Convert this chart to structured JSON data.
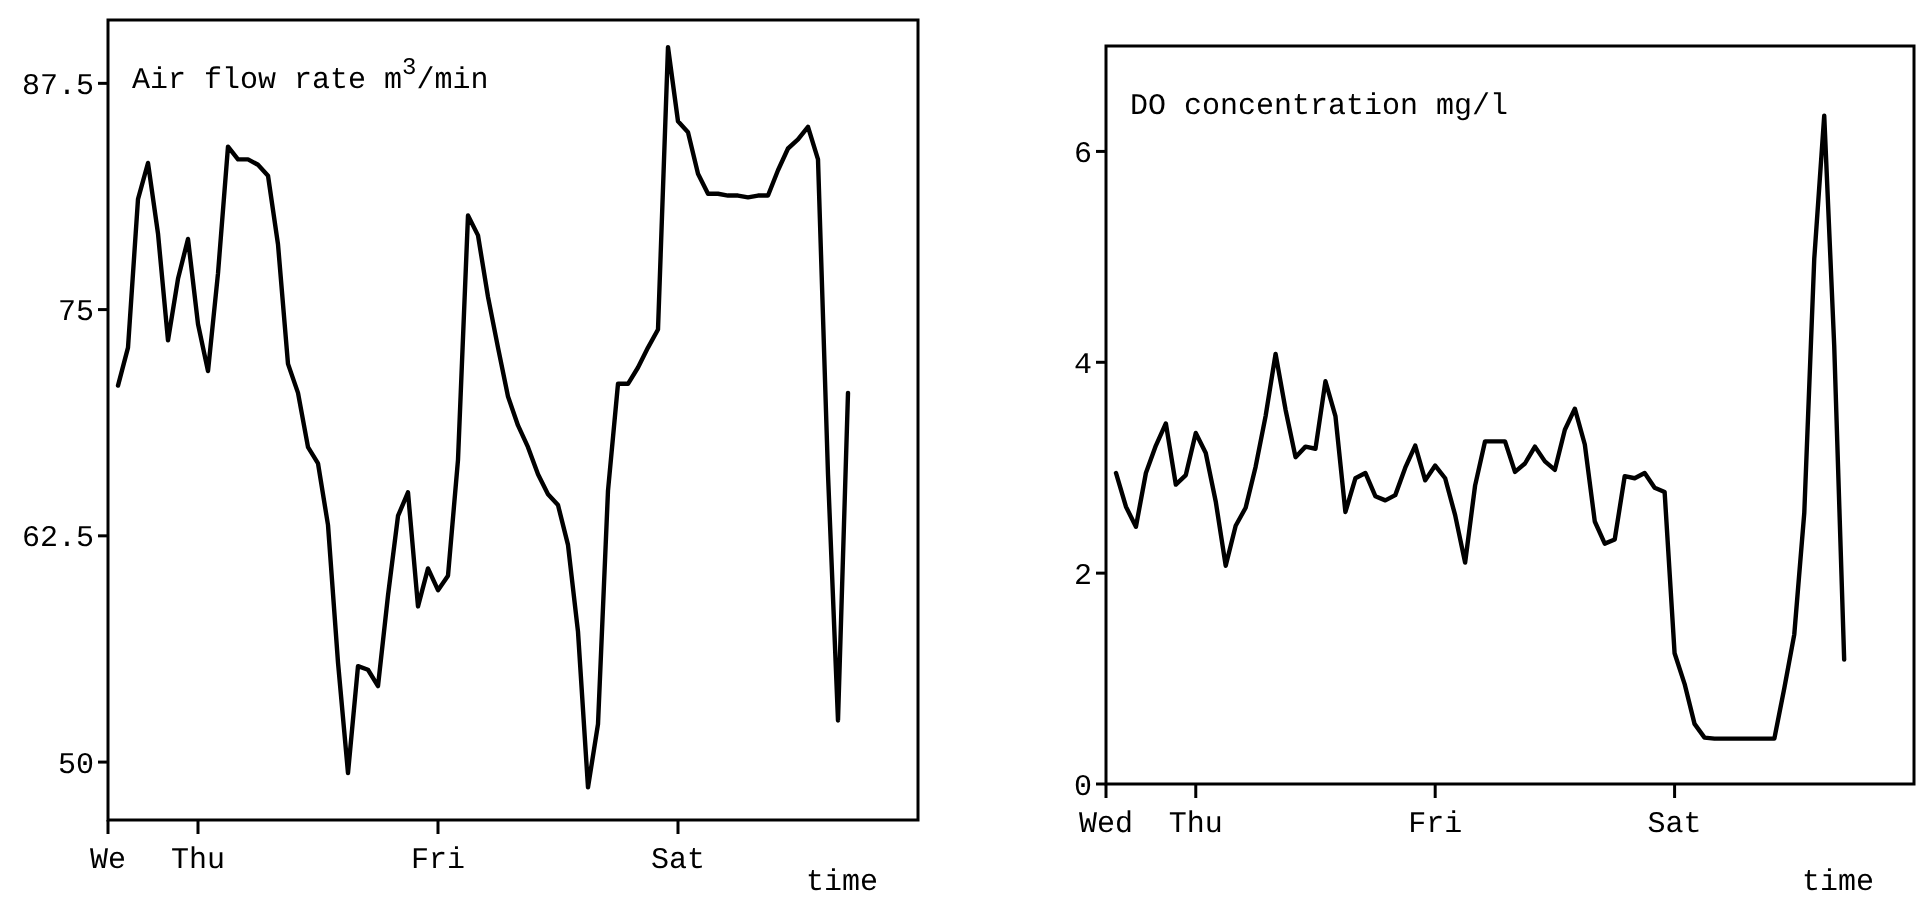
{
  "chart_data": [
    {
      "type": "line",
      "title": "Air flow rate m$^{3}$/min",
      "xlabel": "time",
      "color": "#000000",
      "ylim": [
        46.8,
        91.0
      ],
      "categories": [
        "We",
        null,
        null,
        null,
        null,
        null,
        null,
        null,
        null,
        "Thu",
        null,
        null,
        null,
        null,
        null,
        null,
        null,
        null,
        null,
        null,
        null,
        null,
        null,
        null,
        null,
        null,
        null,
        null,
        null,
        null,
        null,
        null,
        null,
        "Fri",
        null,
        null,
        null,
        null,
        null,
        null,
        null,
        null,
        null,
        null,
        null,
        null,
        null,
        null,
        null,
        null,
        null,
        null,
        null,
        null,
        null,
        null,
        null,
        "Sat",
        null,
        null,
        null,
        null,
        null,
        null,
        null,
        null,
        null,
        null,
        null,
        null,
        null,
        null,
        null,
        null,
        null,
        null,
        null,
        null,
        null,
        null,
        null,
        null
      ],
      "yticks": [
        50,
        62.5,
        75,
        87.5
      ],
      "values": [
        null,
        70.8,
        72.9,
        81.1,
        83.1,
        79.2,
        73.3,
        76.7,
        78.9,
        74.2,
        71.6,
        77.0,
        84.0,
        83.3,
        83.3,
        83.0,
        82.4,
        78.6,
        72.0,
        70.4,
        67.4,
        66.5,
        63.1,
        55.5,
        49.4,
        55.3,
        55.1,
        54.2,
        59.2,
        63.6,
        64.9,
        58.6,
        60.7,
        59.5,
        60.3,
        66.7,
        80.2,
        79.1,
        75.7,
        72.9,
        70.2,
        68.6,
        67.4,
        65.9,
        64.8,
        64.2,
        62.0,
        57.2,
        48.6,
        52.1,
        65.0,
        70.9,
        70.9,
        71.8,
        72.9,
        73.9,
        89.5,
        85.4,
        84.8,
        82.5,
        81.4,
        81.4,
        81.3,
        81.3,
        81.2,
        81.3,
        81.3,
        82.7,
        83.9,
        84.4,
        85.1,
        83.3,
        65.9,
        52.3,
        70.4,
        null,
        null,
        null,
        null,
        null,
        null,
        null
      ]
    },
    {
      "type": "line",
      "title": "DO concentration mg/l",
      "xlabel": "time",
      "color": "#000000",
      "ylim": [
        0,
        7.0
      ],
      "categories": [
        "Wed",
        null,
        null,
        null,
        null,
        null,
        null,
        null,
        null,
        "Thu",
        null,
        null,
        null,
        null,
        null,
        null,
        null,
        null,
        null,
        null,
        null,
        null,
        null,
        null,
        null,
        null,
        null,
        null,
        null,
        null,
        null,
        null,
        null,
        "Fri",
        null,
        null,
        null,
        null,
        null,
        null,
        null,
        null,
        null,
        null,
        null,
        null,
        null,
        null,
        null,
        null,
        null,
        null,
        null,
        null,
        null,
        null,
        null,
        "Sat",
        null,
        null,
        null,
        null,
        null,
        null,
        null,
        null,
        null,
        null,
        null,
        null,
        null,
        null,
        null,
        null,
        null,
        null,
        null,
        null,
        null,
        null,
        null,
        null
      ],
      "yticks": [
        0,
        2,
        4,
        6
      ],
      "values": [
        null,
        2.95,
        2.63,
        2.44,
        2.95,
        3.21,
        3.42,
        2.84,
        2.93,
        3.33,
        3.14,
        2.68,
        2.07,
        2.45,
        2.62,
        3.01,
        3.49,
        4.08,
        3.55,
        3.1,
        3.2,
        3.18,
        3.82,
        3.49,
        2.58,
        2.9,
        2.95,
        2.73,
        2.69,
        2.74,
        3.0,
        3.21,
        2.88,
        3.02,
        2.9,
        2.55,
        2.1,
        2.83,
        3.25,
        3.25,
        3.25,
        2.96,
        3.04,
        3.2,
        3.06,
        2.98,
        3.36,
        3.56,
        3.22,
        2.49,
        2.28,
        2.32,
        2.92,
        2.9,
        2.95,
        2.81,
        2.77,
        1.24,
        0.95,
        0.57,
        0.44,
        0.43,
        0.43,
        0.43,
        0.43,
        0.43,
        0.43,
        0.43,
        0.91,
        1.42,
        2.57,
        4.98,
        6.34,
        4.16,
        1.18,
        null,
        null,
        null,
        null,
        null,
        null,
        null
      ]
    }
  ]
}
